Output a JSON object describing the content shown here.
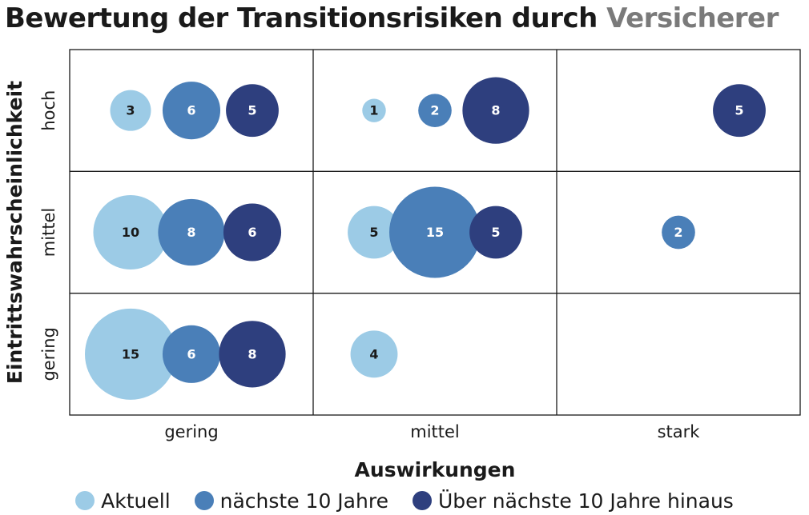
{
  "chart_data": {
    "type": "bubble-matrix",
    "title": "Bewertung der Transitionsrisiken durch",
    "title_accent": "Versicherer",
    "xlabel": "Auswirkungen",
    "ylabel": "Eintrittswahrscheinlichkeit",
    "x_categories": [
      "gering",
      "mittel",
      "stark"
    ],
    "y_categories": [
      "hoch",
      "mittel",
      "gering"
    ],
    "series": [
      {
        "name": "Aktuell",
        "color": "#9ccbe6",
        "text_color": "#1a1a1a"
      },
      {
        "name": "nächste 10 Jahre",
        "color": "#4a7fb8",
        "text_color": "#ffffff"
      },
      {
        "name": "Über nächste 10 Jahre hinaus",
        "color": "#2e3f7e",
        "text_color": "#ffffff"
      }
    ],
    "points": [
      {
        "x": "gering",
        "y": "hoch",
        "series": 0,
        "value": 3
      },
      {
        "x": "gering",
        "y": "hoch",
        "series": 1,
        "value": 6
      },
      {
        "x": "gering",
        "y": "hoch",
        "series": 2,
        "value": 5
      },
      {
        "x": "mittel",
        "y": "hoch",
        "series": 0,
        "value": 1
      },
      {
        "x": "mittel",
        "y": "hoch",
        "series": 1,
        "value": 2
      },
      {
        "x": "mittel",
        "y": "hoch",
        "series": 2,
        "value": 8
      },
      {
        "x": "stark",
        "y": "hoch",
        "series": 2,
        "value": 5
      },
      {
        "x": "gering",
        "y": "mittel",
        "series": 0,
        "value": 10
      },
      {
        "x": "gering",
        "y": "mittel",
        "series": 1,
        "value": 8
      },
      {
        "x": "gering",
        "y": "mittel",
        "series": 2,
        "value": 6
      },
      {
        "x": "mittel",
        "y": "mittel",
        "series": 0,
        "value": 5
      },
      {
        "x": "mittel",
        "y": "mittel",
        "series": 1,
        "value": 15
      },
      {
        "x": "mittel",
        "y": "mittel",
        "series": 2,
        "value": 5
      },
      {
        "x": "stark",
        "y": "mittel",
        "series": 1,
        "value": 2
      },
      {
        "x": "gering",
        "y": "gering",
        "series": 0,
        "value": 15
      },
      {
        "x": "gering",
        "y": "gering",
        "series": 1,
        "value": 6
      },
      {
        "x": "gering",
        "y": "gering",
        "series": 2,
        "value": 8
      },
      {
        "x": "mittel",
        "y": "gering",
        "series": 0,
        "value": 4
      }
    ]
  }
}
